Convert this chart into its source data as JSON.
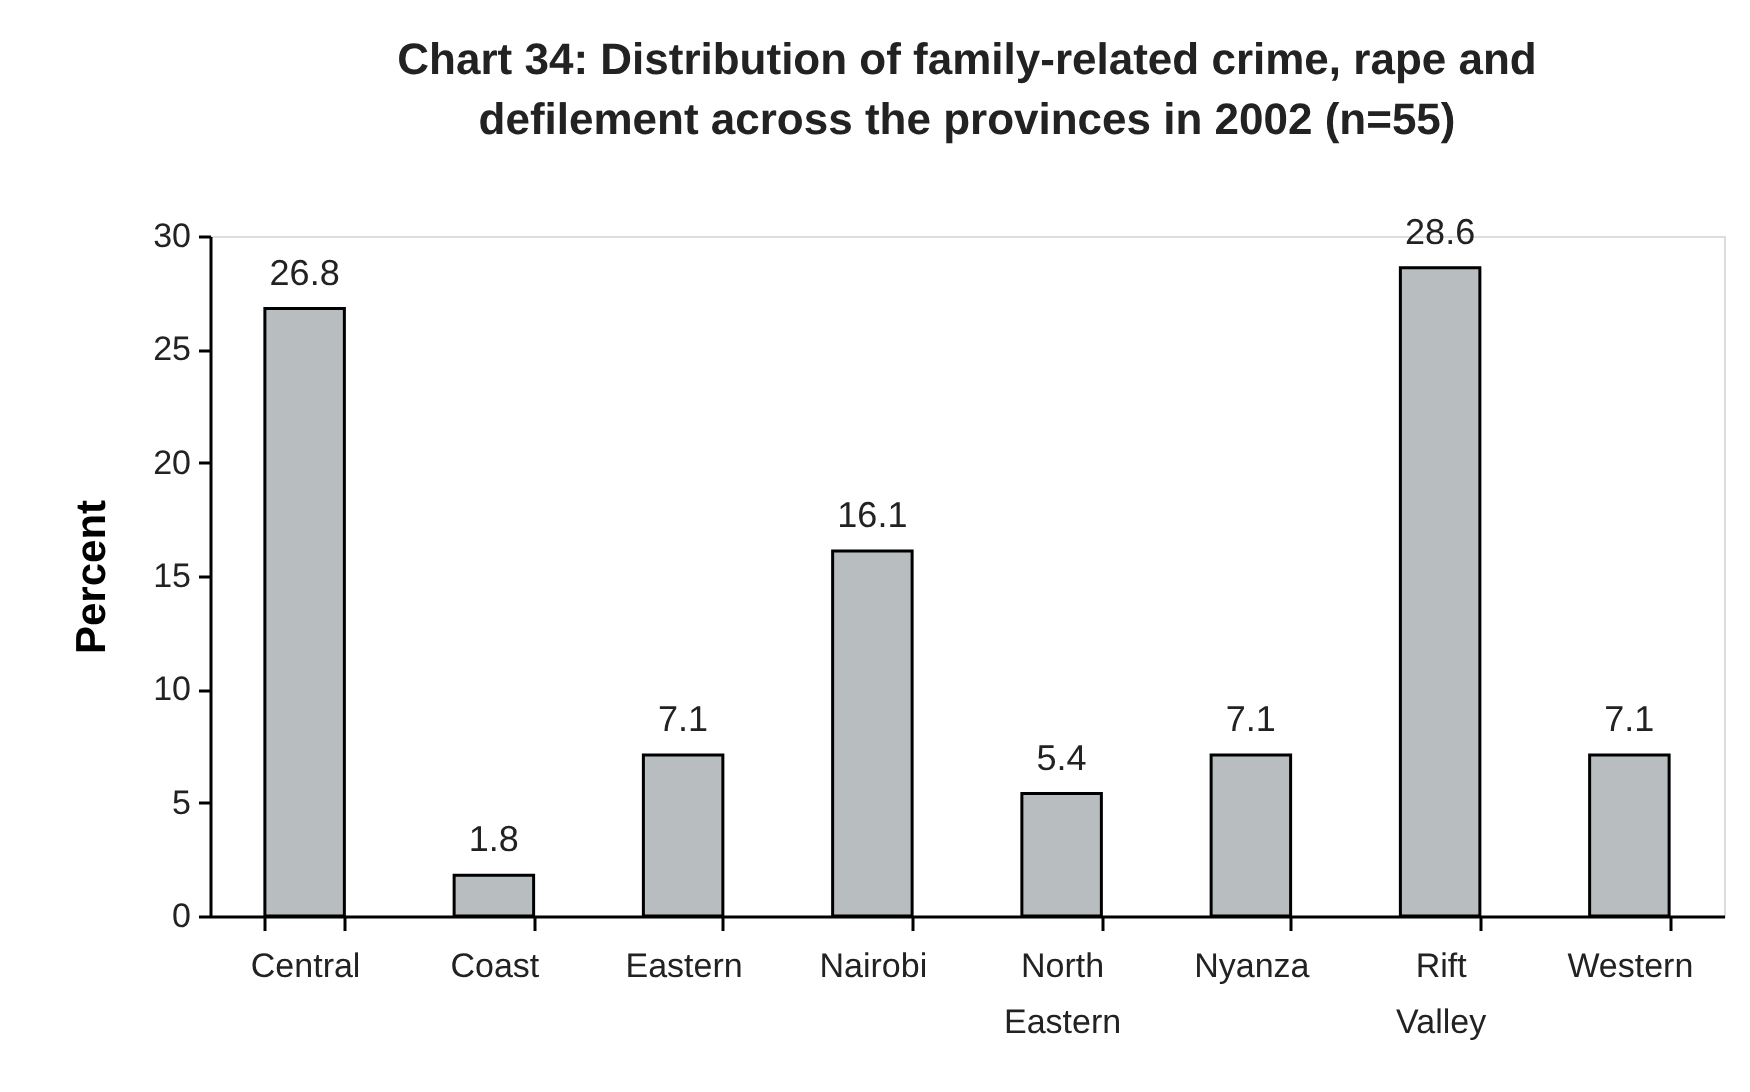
{
  "chart_data": {
    "type": "bar",
    "title": "Chart 34: Distribution of family-related crime, rape and defilement across the provinces in 2002 (n=55)",
    "ylabel": "Percent",
    "categories": [
      "Central",
      "Coast",
      "Eastern",
      "Nairobi",
      "North Eastern",
      "Nyanza",
      "Rift Valley",
      "Western"
    ],
    "values": [
      26.8,
      1.8,
      7.1,
      16.1,
      5.4,
      7.1,
      28.6,
      7.1
    ],
    "color": "#b8bdc0",
    "ylim": [
      0,
      30
    ],
    "yticks": [
      0,
      5,
      10,
      15,
      20,
      25,
      30
    ],
    "data_labels": true
  }
}
